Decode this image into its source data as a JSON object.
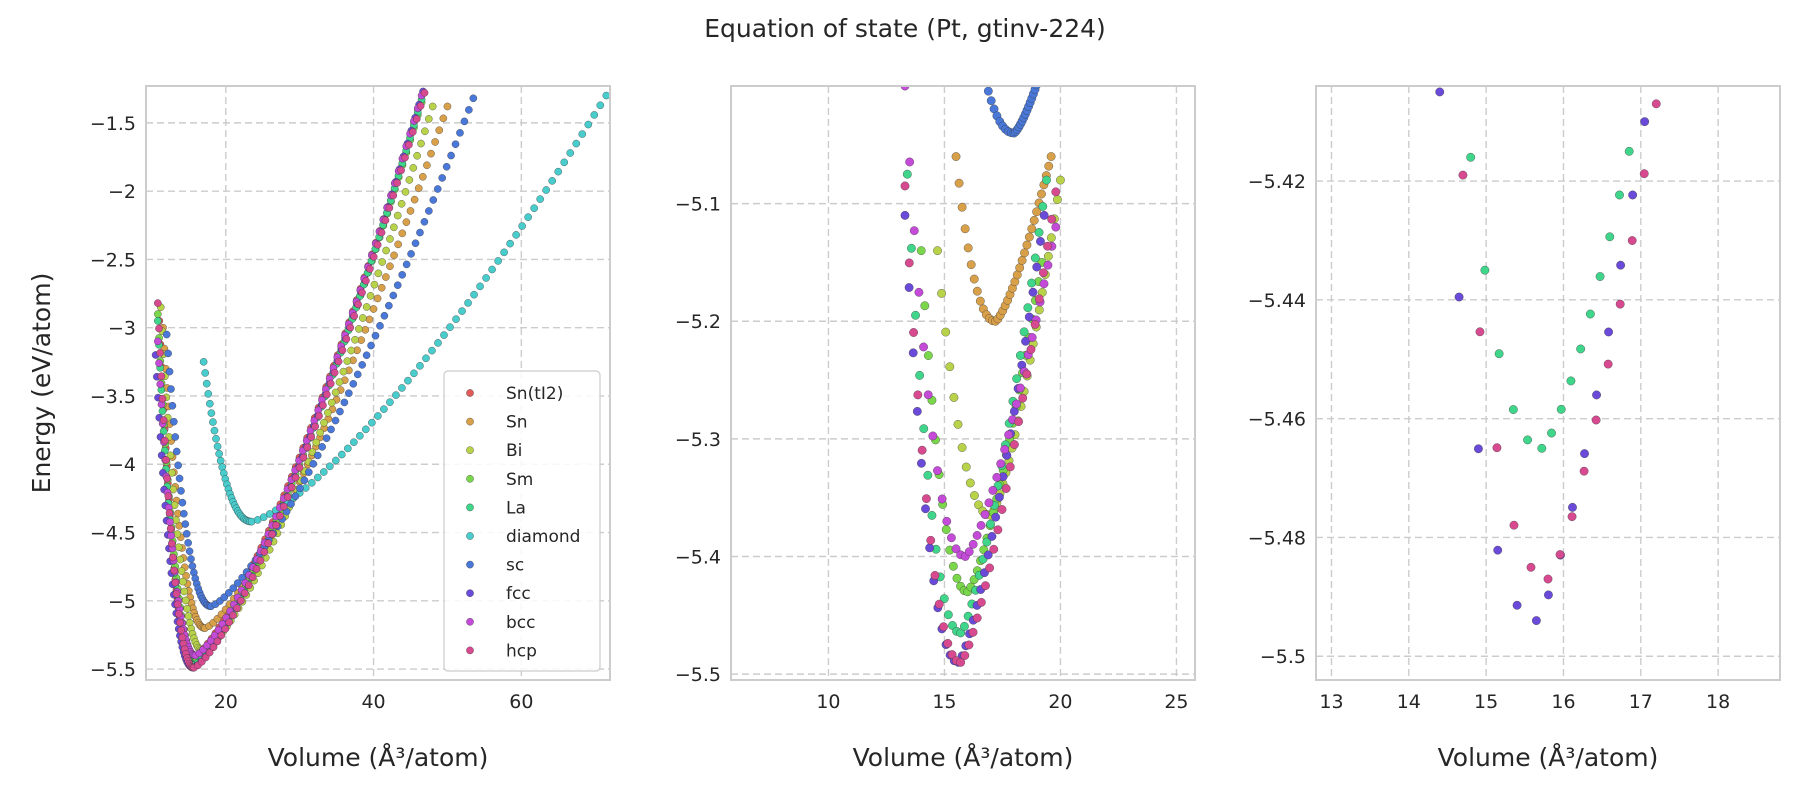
{
  "figure_title": "Equation of state (Pt, gtinv-224)",
  "colors": {
    "Sn(tI2)": "#e05a5a",
    "Sn": "#d9a04a",
    "Bi": "#b8d24a",
    "Sm": "#7ad64a",
    "La": "#3fd58a",
    "diamond": "#48cccc",
    "sc": "#4a78d8",
    "fcc": "#6a4ad8",
    "bcc": "#c44ad8",
    "hcp": "#d84a90"
  },
  "legend": [
    "Sn(tI2)",
    "Sn",
    "Bi",
    "Sm",
    "La",
    "diamond",
    "sc",
    "fcc",
    "bcc",
    "hcp"
  ],
  "legend_position": "lower right (left panel)",
  "chart_data": [
    {
      "type": "scatter",
      "xlabel": "Volume (Å³/atom)",
      "ylabel": "Energy (eV/atom)",
      "xlim": [
        9.2,
        72.0
      ],
      "ylim": [
        -5.58,
        -1.23
      ],
      "xticks": [
        20,
        40,
        60
      ],
      "yticks": [
        -5.5,
        -5.0,
        -4.5,
        -4.0,
        -3.5,
        -3.0,
        -2.5,
        -2.0,
        -1.5
      ],
      "grid": true,
      "series": [
        {
          "name": "Sn(tI2)",
          "min": [
            15.5,
            -5.42
          ],
          "left": [
            11.0,
            -2.95
          ],
          "right": [
            46.0,
            -1.4
          ]
        },
        {
          "name": "Sn",
          "min": [
            17.2,
            -5.2
          ],
          "left": [
            11.5,
            -3.0
          ],
          "right": [
            50.0,
            -1.38
          ]
        },
        {
          "name": "Bi",
          "min": [
            17.0,
            -5.37
          ],
          "left": [
            11.2,
            -2.85
          ],
          "right": [
            48.0,
            -1.38
          ]
        },
        {
          "name": "Sm",
          "min": [
            16.0,
            -5.42
          ],
          "left": [
            10.8,
            -2.9
          ],
          "right": [
            46.5,
            -1.35
          ]
        },
        {
          "name": "La",
          "min": [
            15.7,
            -5.47
          ],
          "left": [
            10.8,
            -2.95
          ],
          "right": [
            46.5,
            -1.33
          ]
        },
        {
          "name": "diamond",
          "min": [
            23.5,
            -4.42
          ],
          "left": [
            17.0,
            -3.25
          ],
          "right": [
            71.5,
            -1.3
          ]
        },
        {
          "name": "sc",
          "min": [
            18.0,
            -5.04
          ],
          "left": [
            12.0,
            -3.05
          ],
          "right": [
            53.5,
            -1.32
          ]
        },
        {
          "name": "fcc",
          "min": [
            15.6,
            -5.49
          ],
          "left": [
            10.5,
            -3.2
          ],
          "right": [
            46.7,
            -1.27
          ]
        },
        {
          "name": "bcc",
          "min": [
            15.9,
            -5.4
          ],
          "left": [
            10.8,
            -3.1
          ],
          "right": [
            46.5,
            -1.3
          ]
        },
        {
          "name": "hcp",
          "min": [
            15.7,
            -5.49
          ],
          "left": [
            10.8,
            -2.82
          ],
          "right": [
            46.9,
            -1.28
          ]
        }
      ]
    },
    {
      "type": "scatter",
      "xlabel": "Volume (Å³/atom)",
      "ylabel": "",
      "xlim": [
        5.8,
        25.8
      ],
      "ylim": [
        -5.505,
        -5.0
      ],
      "xticks": [
        10,
        15,
        20,
        25
      ],
      "yticks": [
        -5.5,
        -5.4,
        -5.3,
        -5.2,
        -5.1
      ],
      "grid": true,
      "series": [
        {
          "name": "Sn",
          "min": [
            17.2,
            -5.2
          ],
          "left": [
            15.5,
            -5.06
          ],
          "right": [
            19.6,
            -5.06
          ]
        },
        {
          "name": "Bi",
          "min": [
            17.0,
            -5.365
          ],
          "left": [
            14.7,
            -5.14
          ],
          "right": [
            20.0,
            -5.08
          ]
        },
        {
          "name": "Sm",
          "min": [
            16.0,
            -5.43
          ],
          "left": [
            14.0,
            -5.14
          ],
          "right": [
            19.2,
            -5.15
          ]
        },
        {
          "name": "La",
          "min": [
            15.7,
            -5.465
          ],
          "left": [
            13.4,
            -5.075
          ],
          "right": [
            19.4,
            -5.08
          ]
        },
        {
          "name": "sc",
          "min": [
            18.0,
            -5.04
          ],
          "left": [
            16.4,
            -4.96
          ],
          "right": [
            19.6,
            -4.96
          ]
        },
        {
          "name": "fcc",
          "min": [
            15.6,
            -5.49
          ],
          "left": [
            13.3,
            -5.11
          ],
          "right": [
            19.3,
            -5.11
          ]
        },
        {
          "name": "bcc",
          "min": [
            15.9,
            -5.4
          ],
          "left": [
            13.3,
            -5.0
          ],
          "right": [
            19.8,
            -5.12
          ]
        },
        {
          "name": "hcp",
          "min": [
            15.7,
            -5.49
          ],
          "left": [
            13.3,
            -5.085
          ],
          "right": [
            19.8,
            -5.09
          ]
        }
      ]
    },
    {
      "type": "scatter",
      "xlabel": "Volume (Å³/atom)",
      "ylabel": "",
      "xlim": [
        12.8,
        18.8
      ],
      "ylim": [
        -5.504,
        -5.404
      ],
      "xticks": [
        13,
        14,
        15,
        16,
        17,
        18
      ],
      "yticks": [
        -5.5,
        -5.48,
        -5.46,
        -5.44,
        -5.42
      ],
      "grid": true,
      "series": [
        {
          "name": "La",
          "min": [
            15.72,
            -5.465
          ],
          "left": [
            14.8,
            -5.416
          ],
          "right": [
            16.85,
            -5.415
          ]
        },
        {
          "name": "fcc",
          "min": [
            15.65,
            -5.494
          ],
          "left": [
            14.4,
            -5.405
          ],
          "right": [
            17.05,
            -5.41
          ]
        },
        {
          "name": "hcp",
          "min": [
            15.8,
            -5.487
          ],
          "left": [
            14.7,
            -5.419
          ],
          "right": [
            17.2,
            -5.407
          ]
        }
      ]
    }
  ]
}
